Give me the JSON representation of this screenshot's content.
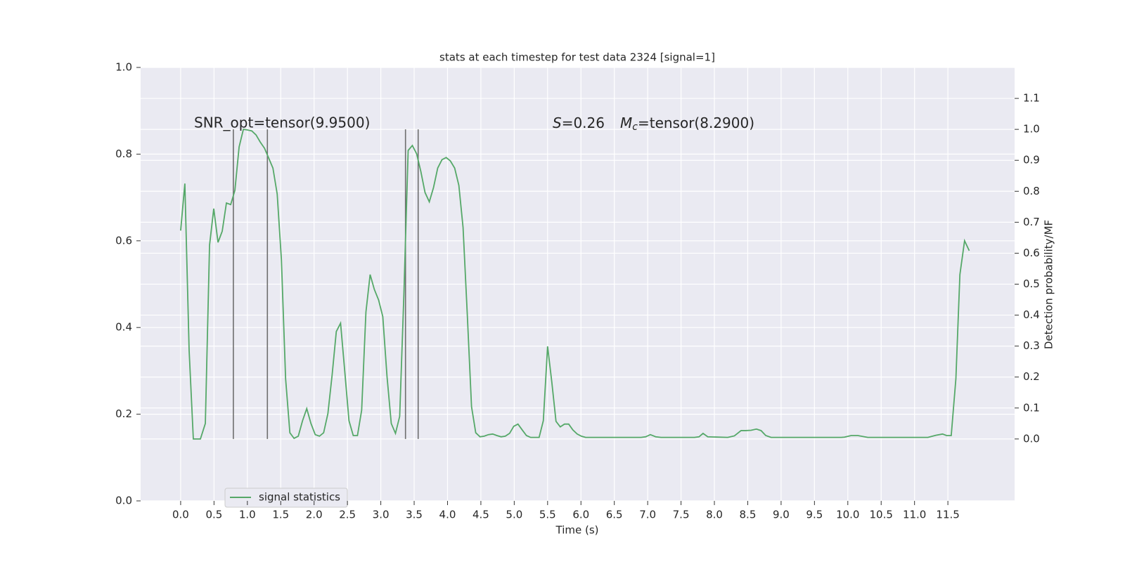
{
  "chart_data": {
    "type": "line",
    "title": "stats at each timestep for test data 2324 [signal=1]",
    "xlabel": "Time (s)",
    "y2label": "Detection probability/MF",
    "annotations": [
      "SNR_opt=tensor(9.9500)",
      [
        "S",
        "=0.26",
        "M",
        "c",
        "=tensor(8.2900)"
      ]
    ],
    "xlim": [
      -0.6,
      12.5
    ],
    "xticks": [
      {
        "value": 0,
        "label": "0.0"
      },
      0.5,
      {
        "value": 1,
        "label": "1.0"
      },
      1.5,
      {
        "value": 2,
        "label": "2.0"
      },
      2.5,
      {
        "value": 3,
        "label": "3.0"
      },
      3.5,
      {
        "value": 4,
        "label": "4.0"
      },
      4.5,
      {
        "value": 5,
        "label": "5.0"
      },
      5.5,
      {
        "value": 6,
        "label": "6.0"
      },
      6.5,
      {
        "value": 7,
        "label": "7.0"
      },
      7.5,
      {
        "value": 8,
        "label": "8.0"
      },
      8.5,
      {
        "value": 9,
        "label": "9.0"
      },
      9.5,
      {
        "value": 10,
        "label": "10.0"
      },
      10.5,
      {
        "value": 11,
        "label": "11.0"
      },
      11.5
    ],
    "ylim": [
      0,
      1
    ],
    "yticks": [
      {
        "value": 0,
        "label": "0.0"
      },
      0.2,
      0.4,
      0.6,
      0.8,
      {
        "value": 1,
        "label": "1.0"
      }
    ],
    "y2lim": [
      -0.2,
      1.2
    ],
    "y2ticks": [
      {
        "value": 0,
        "label": "0.0"
      },
      0.1,
      0.2,
      0.3,
      0.4,
      0.5,
      0.6,
      0.7,
      0.8,
      0.9,
      {
        "value": 1,
        "label": "1.0"
      },
      1.1
    ],
    "grid": true,
    "legend": "lower left",
    "vlines": {
      "x": [
        0.79,
        1.3,
        3.37,
        3.56
      ],
      "ymin": 0,
      "ymax": 1,
      "color": "#6e6e6e"
    },
    "x": [
      0,
      0.063,
      0.127,
      0.19,
      0.296,
      0.37,
      0.433,
      0.496,
      0.56,
      0.623,
      0.686,
      0.75,
      0.813,
      0.876,
      0.94,
      1.003,
      1.066,
      1.13,
      1.193,
      1.257,
      1.32,
      1.383,
      1.447,
      1.51,
      1.573,
      1.637,
      1.7,
      1.763,
      1.827,
      1.89,
      1.953,
      2.017,
      2.08,
      2.143,
      2.207,
      2.27,
      2.333,
      2.397,
      2.46,
      2.523,
      2.587,
      2.65,
      2.713,
      2.777,
      2.84,
      2.903,
      2.967,
      3.03,
      3.093,
      3.157,
      3.22,
      3.283,
      3.346,
      3.41,
      3.473,
      3.537,
      3.6,
      3.663,
      3.727,
      3.79,
      3.853,
      3.917,
      3.98,
      4.043,
      4.107,
      4.17,
      4.233,
      4.297,
      4.36,
      4.423,
      4.487,
      4.55,
      4.613,
      4.677,
      4.74,
      4.803,
      4.866,
      4.93,
      4.993,
      5.056,
      5.12,
      5.183,
      5.246,
      5.373,
      5.436,
      5.5,
      5.563,
      5.626,
      5.69,
      5.753,
      5.816,
      5.879,
      5.943,
      6.006,
      6.07,
      6.9,
      6.97,
      7.04,
      7.12,
      7.2,
      7.7,
      7.77,
      7.83,
      7.9,
      8.2,
      8.3,
      8.4,
      8.47,
      8.55,
      8.63,
      8.7,
      8.77,
      8.85,
      9.9,
      9.95,
      10.05,
      10.15,
      10.3,
      11.2,
      11.32,
      11.42,
      11.48,
      11.55,
      11.62,
      11.68,
      11.75,
      11.82
    ],
    "series": [
      {
        "name": "signal statistics",
        "color": "#55a868",
        "axis": "y2",
        "values": [
          0.673,
          0.825,
          0.286,
          0,
          0,
          0.05,
          0.626,
          0.744,
          0.635,
          0.671,
          0.762,
          0.757,
          0.803,
          0.943,
          1.0,
          0.998,
          0.995,
          0.982,
          0.959,
          0.939,
          0.907,
          0.875,
          0.791,
          0.58,
          0.195,
          0.02,
          0.002,
          0.009,
          0.059,
          0.098,
          0.05,
          0.014,
          0.009,
          0.02,
          0.082,
          0.206,
          0.347,
          0.374,
          0.218,
          0.059,
          0.011,
          0.011,
          0.093,
          0.41,
          0.531,
          0.483,
          0.449,
          0.395,
          0.202,
          0.05,
          0.018,
          0.073,
          0.467,
          0.932,
          0.948,
          0.921,
          0.864,
          0.796,
          0.766,
          0.812,
          0.875,
          0.902,
          0.909,
          0.898,
          0.875,
          0.819,
          0.683,
          0.399,
          0.104,
          0.02,
          0.007,
          0.009,
          0.014,
          0.016,
          0.011,
          0.007,
          0.009,
          0.018,
          0.041,
          0.048,
          0.029,
          0.011,
          0.005,
          0.005,
          0.059,
          0.299,
          0.184,
          0.057,
          0.039,
          0.048,
          0.048,
          0.029,
          0.016,
          0.009,
          0.005,
          0.005,
          0.007,
          0.014,
          0.007,
          0.005,
          0.005,
          0.007,
          0.018,
          0.007,
          0.005,
          0.01,
          0.027,
          0.027,
          0.028,
          0.032,
          0.027,
          0.011,
          0.005,
          0.005,
          0.006,
          0.011,
          0.011,
          0.005,
          0.005,
          0.012,
          0.016,
          0.011,
          0.011,
          0.195,
          0.531,
          0.64,
          0.608
        ]
      }
    ]
  }
}
